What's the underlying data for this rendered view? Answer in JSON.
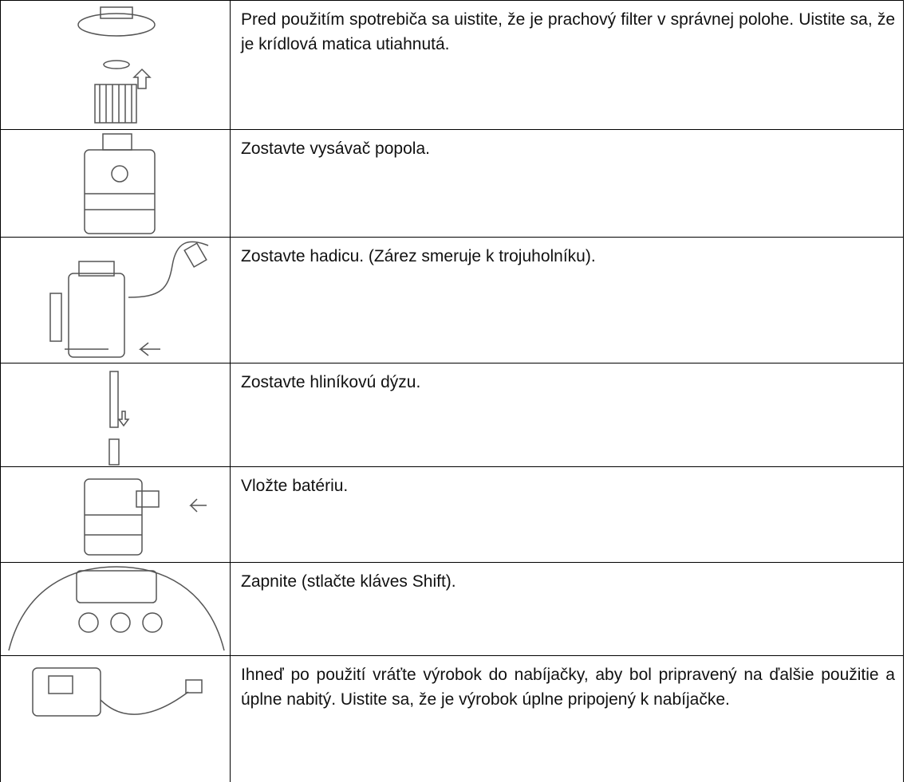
{
  "table": {
    "rows": [
      {
        "text": "Pred použitím spotrebiča sa uistite, že je prachový filter v správnej polohe. Uistite sa, že je krídlová matica utiahnutá."
      },
      {
        "text": "Zostavte vysávač popola."
      },
      {
        "text": "Zostavte hadicu. (Zárez smeruje k trojuholníku)."
      },
      {
        "text": "Zostavte hliníkovú dýzu."
      },
      {
        "text": "Vložte batériu."
      },
      {
        "text": "Zapnite (stlačte kláves Shift)."
      },
      {
        "text": "Ihneď po použití vráťte výrobok do nabíjačky, aby bol pripravený na ďalšie použitie a úplne nabitý. Uistite sa, že je výrobok úplne pripojený k nabíjačke."
      }
    ]
  }
}
